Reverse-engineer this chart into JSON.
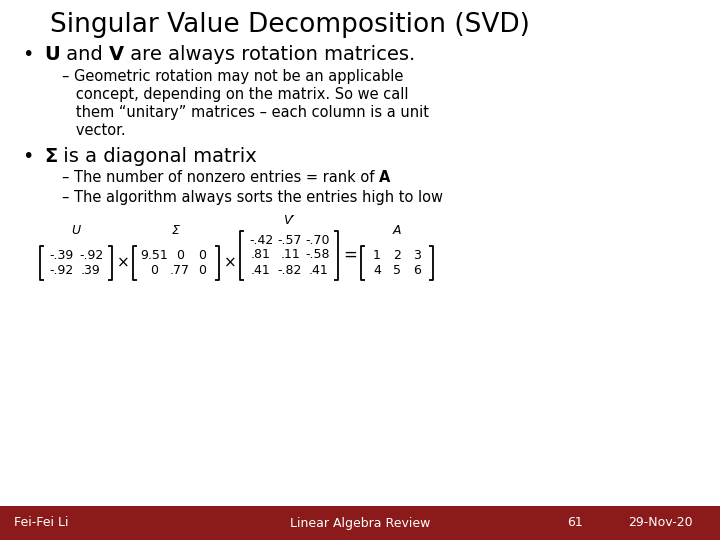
{
  "title": "Singular Value Decomposition (SVD)",
  "bg_color": "#ffffff",
  "footer_bg": "#8B1A1A",
  "footer_text_color": "#ffffff",
  "footer_left": "Fei-Fei Li",
  "footer_center": "Linear Algebra Review",
  "footer_right_num": "61",
  "footer_right_date": "29-Nov-20",
  "bullet1_bold": "U",
  "bullet1_text": " and ",
  "bullet1_bold2": "V",
  "bullet1_text2": " are always rotation matrices.",
  "sub1_lines": [
    "– Geometric rotation may not be an applicable",
    "   concept, depending on the matrix. So we call",
    "   them “unitary” matrices – each column is a unit",
    "   vector."
  ],
  "bullet2_bold": "Σ",
  "bullet2_text": " is a diagonal matrix",
  "sub2a": "– The number of nonzero entries = rank of ",
  "sub2a_bold": "A",
  "sub2b": "– The algorithm always sorts the entries high to low",
  "formula_label_U": "U",
  "formula_label_Sigma": "Σ",
  "formula_label_Vprime": "V′",
  "formula_label_A": "A",
  "matrix_U": [
    [
      "-.39",
      "-.92"
    ],
    [
      "-.92",
      ".39"
    ]
  ],
  "matrix_Sigma": [
    [
      "9.51",
      "0",
      "0"
    ],
    [
      "0",
      ".77",
      "0"
    ]
  ],
  "matrix_V": [
    [
      "-.42",
      "-.57",
      "-.70"
    ],
    [
      ".81",
      ".11",
      "-.58"
    ],
    [
      ".41",
      "-.82",
      ".41"
    ]
  ],
  "matrix_A": [
    [
      "1",
      "2",
      "3"
    ],
    [
      "4",
      "5",
      "6"
    ]
  ]
}
